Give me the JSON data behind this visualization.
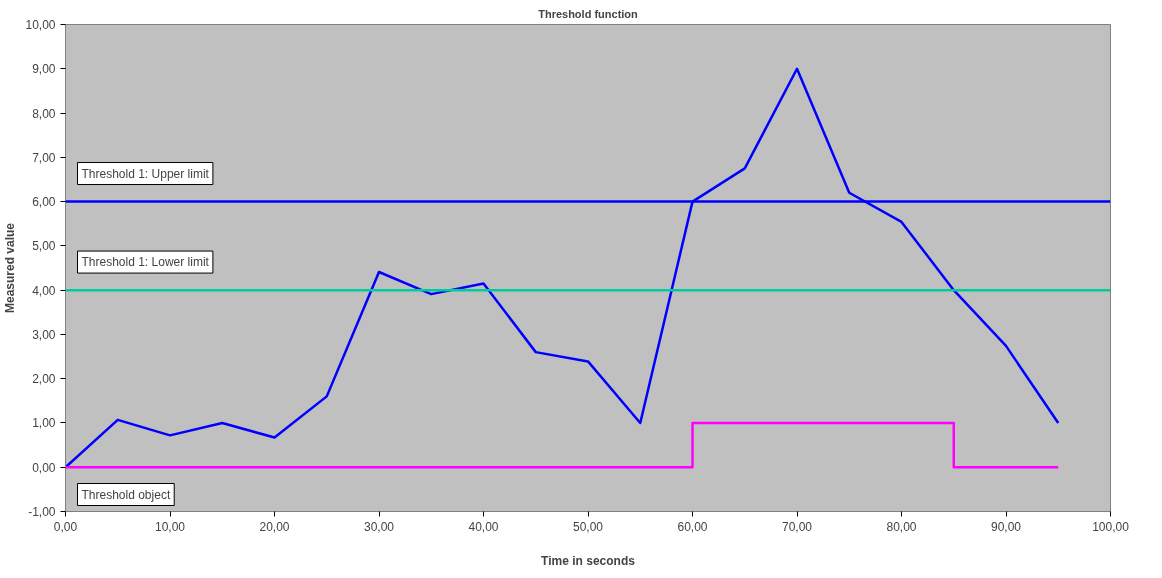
{
  "chart_data": {
    "type": "line",
    "title": "Threshold function",
    "xlabel": "Time in seconds",
    "ylabel": "Measured value",
    "x": [
      0,
      5,
      10,
      15,
      20,
      25,
      30,
      35,
      40,
      45,
      50,
      55,
      60,
      65,
      70,
      75,
      80,
      85,
      90,
      95
    ],
    "series": [
      {
        "color": "#0000ff",
        "values": [
          0,
          1.07,
          0.72,
          1.0,
          0.67,
          1.6,
          4.41,
          3.91,
          4.15,
          2.6,
          2.39,
          1.0,
          6.0,
          6.75,
          9.0,
          6.2,
          5.54,
          4.0,
          2.74,
          1.0
        ]
      },
      {
        "name": "Threshold object",
        "color": "#ff00ff",
        "x": [
          0,
          60,
          60,
          85,
          85,
          95
        ],
        "values": [
          0,
          0,
          1,
          1,
          0,
          0
        ]
      }
    ],
    "ref_lines": [
      {
        "axis": "y",
        "value": 6,
        "label": "Threshold 1: Upper limit",
        "color": "#0000ff"
      },
      {
        "axis": "y",
        "value": 4,
        "label": "Threshold 1: Lower limit",
        "color": "#00cc99"
      }
    ],
    "xlim": [
      0,
      100
    ],
    "ylim": [
      -1,
      10
    ],
    "xticks": [
      {
        "value": 0,
        "label": "0,00"
      },
      {
        "value": 10,
        "label": "10,00"
      },
      {
        "value": 20,
        "label": "20,00"
      },
      {
        "value": 30,
        "label": "30,00"
      },
      {
        "value": 40,
        "label": "40,00"
      },
      {
        "value": 50,
        "label": "50,00"
      },
      {
        "value": 60,
        "label": "60,00"
      },
      {
        "value": 70,
        "label": "70,00"
      },
      {
        "value": 80,
        "label": "80,00"
      },
      {
        "value": 90,
        "label": "90,00"
      },
      {
        "value": 100,
        "label": "100,00"
      }
    ],
    "yticks": [
      {
        "value": -1,
        "label": "-1,00"
      },
      {
        "value": 0,
        "label": "0,00"
      },
      {
        "value": 1,
        "label": "1,00"
      },
      {
        "value": 2,
        "label": "2,00"
      },
      {
        "value": 3,
        "label": "3,00"
      },
      {
        "value": 4,
        "label": "4,00"
      },
      {
        "value": 5,
        "label": "5,00"
      },
      {
        "value": 6,
        "label": "6,00"
      },
      {
        "value": 7,
        "label": "7,00"
      },
      {
        "value": 8,
        "label": "8,00"
      },
      {
        "value": 9,
        "label": "9,00"
      },
      {
        "value": 10,
        "label": "10,00"
      }
    ],
    "grid": false,
    "marker": "none",
    "line_style": "solid"
  }
}
